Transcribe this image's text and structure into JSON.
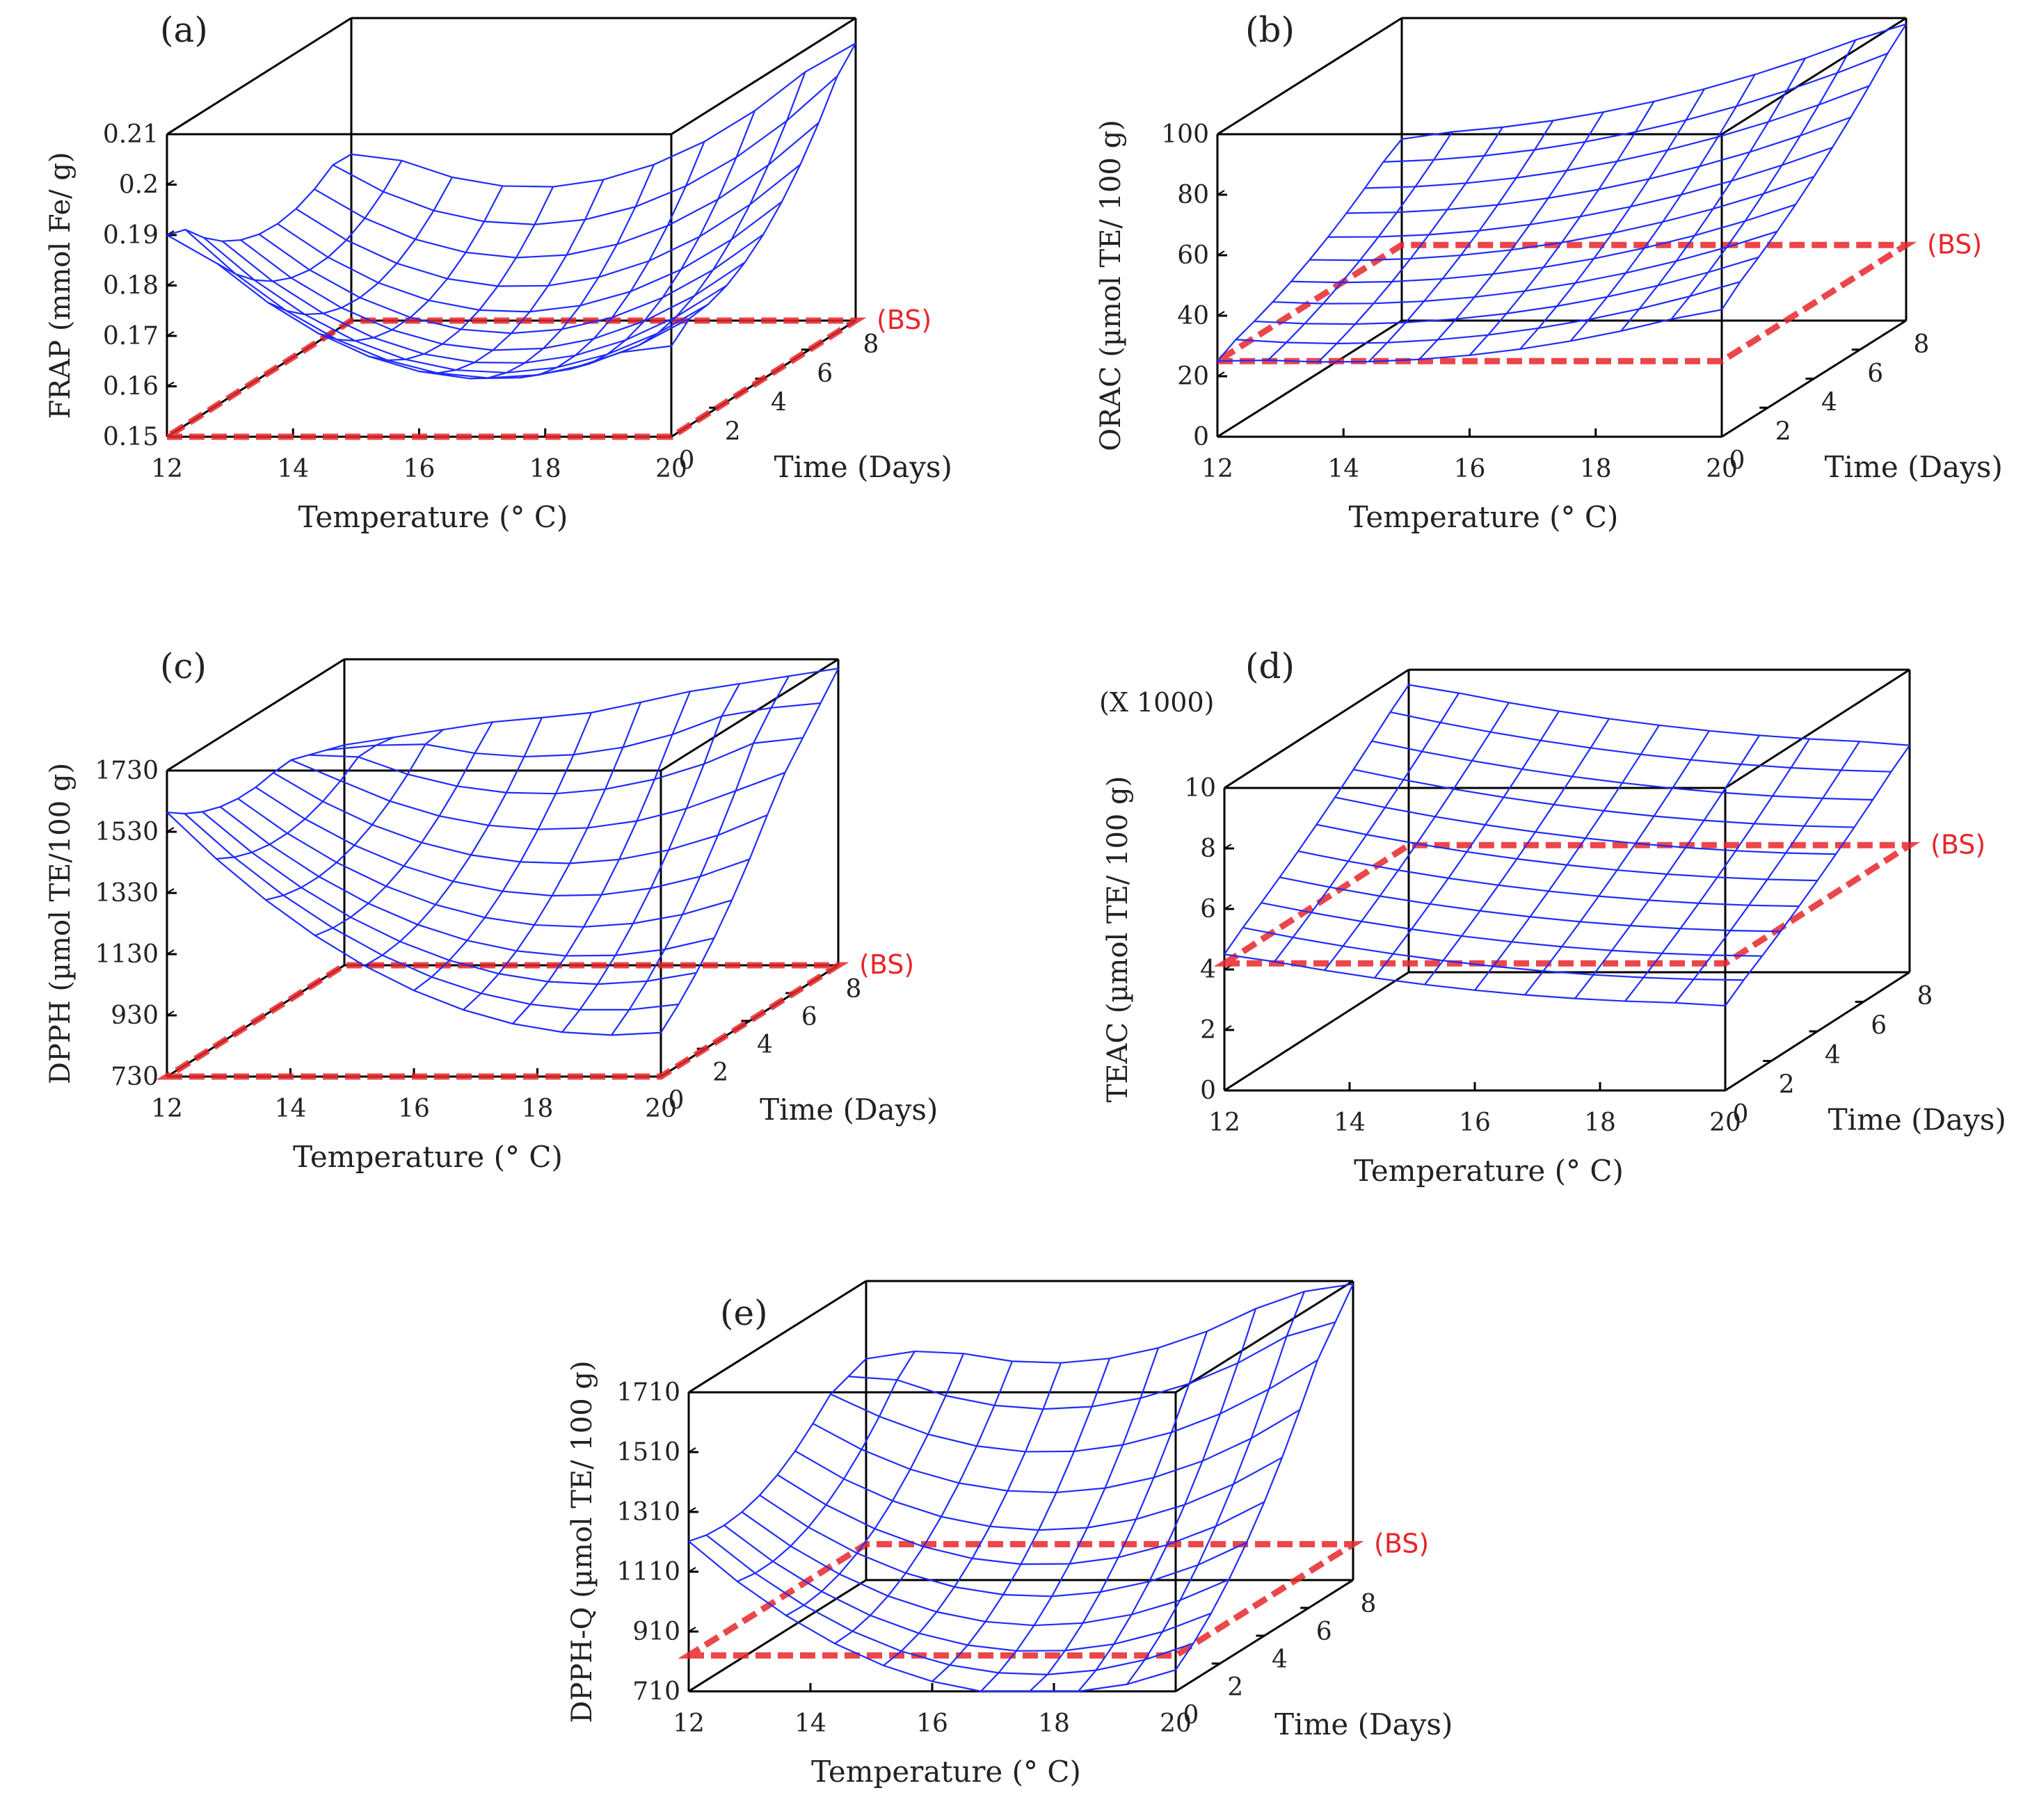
{
  "chart_data": [
    {
      "panel_label": "(a)",
      "type": "surface3d",
      "xlabel": "Temperature (° C)",
      "ylabel": "Time (Days)",
      "zlabel": "FRAP (mmol Fe/ g)",
      "z_multiplier": "",
      "xlim": [
        12,
        20
      ],
      "ylim": [
        0,
        8
      ],
      "zlim": [
        0.15,
        0.21
      ],
      "xticks": [
        12,
        14,
        16,
        18,
        20
      ],
      "yticks": [
        0,
        2,
        4,
        6,
        8
      ],
      "zticks": [
        "0.15",
        "0.16",
        "0.17",
        "0.18",
        "0.19",
        "0.2",
        "0.21"
      ],
      "zticks_values": [
        0.15,
        0.16,
        0.17,
        0.18,
        0.19,
        0.2,
        0.21
      ],
      "corner_values": {
        "t12_d0": 0.19,
        "t20_d0": 0.168,
        "t12_d8": 0.183,
        "t20_d8": 0.205
      },
      "valley": {
        "temperature": 16,
        "time": 4,
        "value": 0.159
      },
      "baseline": {
        "label": "(BS)",
        "value": 0.15
      }
    },
    {
      "panel_label": "(b)",
      "type": "surface3d",
      "xlabel": "Temperature (° C)",
      "ylabel": "Time (Days)",
      "zlabel": "ORAC (µmol TE/ 100 g)",
      "z_multiplier": "",
      "xlim": [
        12,
        20
      ],
      "ylim": [
        0,
        8
      ],
      "zlim": [
        0,
        100
      ],
      "xticks": [
        12,
        14,
        16,
        18,
        20
      ],
      "yticks": [
        0,
        2,
        4,
        6,
        8
      ],
      "zticks": [
        "0",
        "20",
        "40",
        "60",
        "80",
        "100"
      ],
      "zticks_values": [
        0,
        20,
        40,
        60,
        80,
        100
      ],
      "corner_values": {
        "t12_d0": 25,
        "t20_d0": 42,
        "t12_d8": 60,
        "t20_d8": 98
      },
      "valley": {
        "temperature": 16,
        "time": 4,
        "value": 45
      },
      "baseline": {
        "label": "(BS)",
        "value": 25
      }
    },
    {
      "panel_label": "(c)",
      "type": "surface3d",
      "xlabel": "Temperature (° C)",
      "ylabel": "Time (Days)",
      "zlabel": "DPPH (µmol TE/100 g)",
      "z_multiplier": "",
      "xlim": [
        12,
        20
      ],
      "ylim": [
        0,
        8
      ],
      "zlim": [
        730,
        1730
      ],
      "xticks": [
        12,
        14,
        16,
        18,
        20
      ],
      "yticks": [
        0,
        2,
        4,
        6,
        8
      ],
      "zticks": [
        "730",
        "930",
        "1130",
        "1330",
        "1530",
        "1730"
      ],
      "zticks_values": [
        730,
        930,
        1130,
        1330,
        1530,
        1730
      ],
      "corner_values": {
        "t12_d0": 1650,
        "t20_d0": 930,
        "t12_d8": 1450,
        "t20_d8": 1700
      },
      "valley": {
        "temperature": 16,
        "time": 2,
        "value": 1050
      },
      "baseline": {
        "label": "(BS)",
        "value": 730
      }
    },
    {
      "panel_label": "(d)",
      "type": "surface3d",
      "xlabel": "Temperature (° C)",
      "ylabel": "Time (Days)",
      "zlabel": "TEAC (µmol TE/ 100 g)",
      "z_multiplier": "(X 1000)",
      "xlim": [
        12,
        20
      ],
      "ylim": [
        0,
        8
      ],
      "zlim": [
        0,
        10
      ],
      "xticks": [
        12,
        14,
        16,
        18,
        20
      ],
      "yticks": [
        0,
        2,
        4,
        6,
        8
      ],
      "zticks": [
        "0",
        "2",
        "4",
        "6",
        "8",
        "10"
      ],
      "zticks_values": [
        0,
        2,
        4,
        6,
        8,
        10
      ],
      "corner_values": {
        "t12_d0": 4.5,
        "t20_d0": 2.8,
        "t12_d8": 9.5,
        "t20_d8": 7.5
      },
      "valley": {
        "temperature": 16,
        "time": 4,
        "value": 5.5
      },
      "baseline": {
        "label": "(BS)",
        "value": 4.2
      }
    },
    {
      "panel_label": "(e)",
      "type": "surface3d",
      "xlabel": "Temperature (° C)",
      "ylabel": "Time (Days)",
      "zlabel": "DPPH-Q (µmol TE/ 100 g)",
      "z_multiplier": "",
      "xlim": [
        12,
        20
      ],
      "ylim": [
        0,
        8
      ],
      "zlim": [
        710,
        1710
      ],
      "xticks": [
        12,
        14,
        16,
        18,
        20
      ],
      "yticks": [
        0,
        2,
        4,
        6,
        8
      ],
      "zticks": [
        "710",
        "910",
        "1110",
        "1310",
        "1510",
        "1710"
      ],
      "zticks_values": [
        710,
        910,
        1110,
        1310,
        1510,
        1710
      ],
      "corner_values": {
        "t12_d0": 1230,
        "t20_d0": 800,
        "t12_d8": 1450,
        "t20_d8": 1700
      },
      "valley": {
        "temperature": 16,
        "time": 3,
        "value": 870
      },
      "baseline": {
        "label": "(BS)",
        "value": 830
      }
    }
  ],
  "colors": {
    "surface": "#1f2bff",
    "baseline": "#e8262a",
    "box": "#000000",
    "text": "#222222"
  }
}
